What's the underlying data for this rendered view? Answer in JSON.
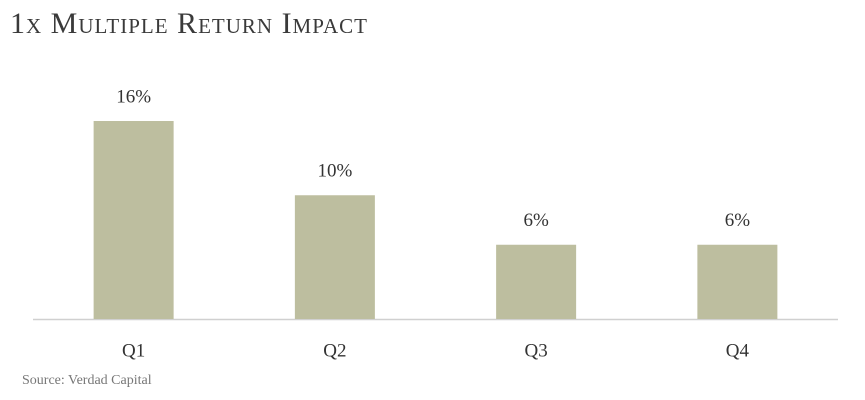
{
  "chart_data": {
    "type": "bar",
    "title": "1x Multiple Return Impact",
    "categories": [
      "Q1",
      "Q2",
      "Q3",
      "Q4"
    ],
    "values": [
      16,
      10,
      6,
      6
    ],
    "value_labels": [
      "16%",
      "10%",
      "6%",
      "6%"
    ],
    "color": "#bdbe9f",
    "source": "Source: Verdad Capital"
  }
}
